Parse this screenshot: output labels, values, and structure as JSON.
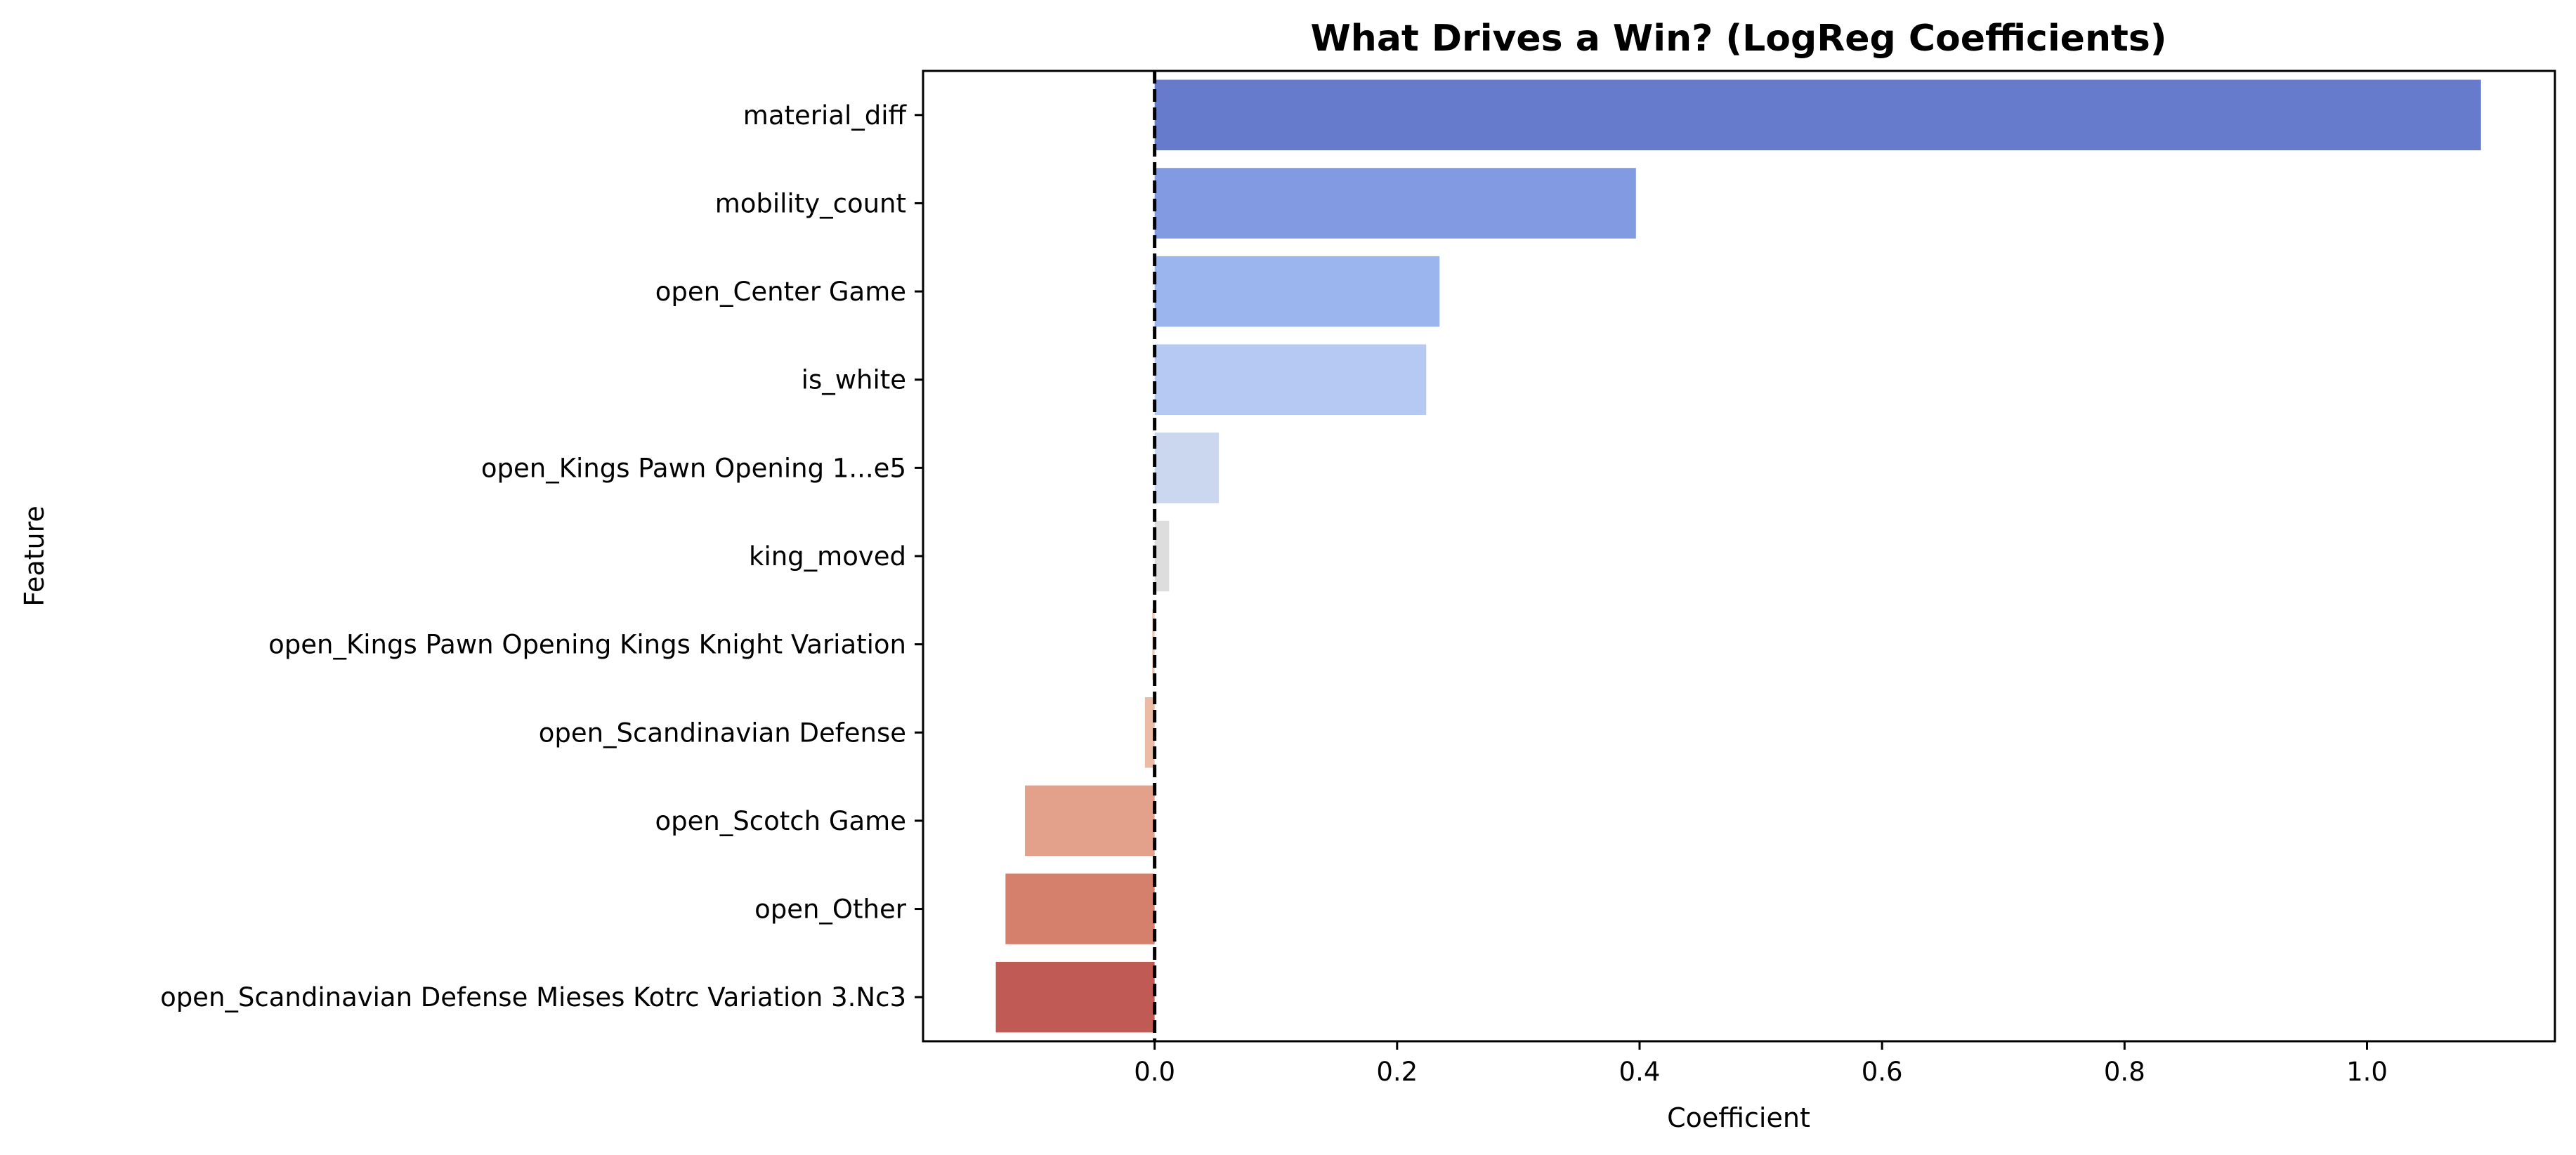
{
  "chart_data": {
    "type": "bar",
    "orientation": "horizontal",
    "title": "What Drives a Win? (LogReg Coefficients)",
    "xlabel": "Coefficient",
    "ylabel": "Feature",
    "xlim": [
      -0.191,
      1.155
    ],
    "xticks": [
      "0.0",
      "0.2",
      "0.4",
      "0.6",
      "0.8",
      "1.0"
    ],
    "xtick_values": [
      0.0,
      0.2,
      0.4,
      0.6,
      0.8,
      1.0
    ],
    "grid": false,
    "reference_line": {
      "x": 0,
      "style": "dashed",
      "color": "#000000"
    },
    "palette": "coolwarm",
    "categories": [
      "material_diff",
      "mobility_count",
      "open_Center Game",
      "is_white",
      "open_Kings Pawn Opening 1...e5",
      "king_moved",
      "open_Kings Pawn Opening Kings Knight Variation",
      "open_Scandinavian Defense",
      "open_Scotch Game",
      "open_Other",
      "open_Scandinavian Defense Mieses Kotrc Variation 3.Nc3"
    ],
    "values": [
      1.094,
      0.397,
      0.235,
      0.224,
      0.053,
      0.012,
      -0.002,
      -0.008,
      -0.107,
      -0.123,
      -0.131
    ],
    "colors": [
      "#667bcc",
      "#829ae2",
      "#9bb6ef",
      "#b6c9f2",
      "#cbd7ee",
      "#dddddd",
      "#eccbb9",
      "#ebbca5",
      "#e3a08a",
      "#d57f6d",
      "#bf5b54"
    ]
  }
}
